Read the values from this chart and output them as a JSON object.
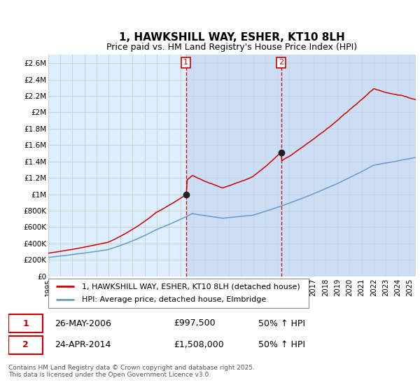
{
  "title": "1, HAWKSHILL WAY, ESHER, KT10 8LH",
  "subtitle": "Price paid vs. HM Land Registry's House Price Index (HPI)",
  "ylim": [
    0,
    2700000
  ],
  "yticks": [
    0,
    200000,
    400000,
    600000,
    800000,
    1000000,
    1200000,
    1400000,
    1600000,
    1800000,
    2000000,
    2200000,
    2400000,
    2600000
  ],
  "ytick_labels": [
    "£0",
    "£200K",
    "£400K",
    "£600K",
    "£800K",
    "£1M",
    "£1.2M",
    "£1.4M",
    "£1.6M",
    "£1.8M",
    "£2M",
    "£2.2M",
    "£2.4M",
    "£2.6M"
  ],
  "xlim_start": 1995.0,
  "xlim_end": 2025.5,
  "purchase1_x": 2006.42,
  "purchase1_y": 997500,
  "purchase2_x": 2014.32,
  "purchase2_y": 1508000,
  "line1_color": "#cc0000",
  "line2_color": "#6699cc",
  "grid_color": "#cccccc",
  "bg_color": "#ddeeff",
  "span_color": "#c5d8f0",
  "legend_line1": "1, HAWKSHILL WAY, ESHER, KT10 8LH (detached house)",
  "legend_line2": "HPI: Average price, detached house, Elmbridge",
  "note1_num": "1",
  "note1_date": "26-MAY-2006",
  "note1_price": "£997,500",
  "note1_change": "50% ↑ HPI",
  "note2_num": "2",
  "note2_date": "24-APR-2014",
  "note2_price": "£1,508,000",
  "note2_change": "50% ↑ HPI",
  "footer": "Contains HM Land Registry data © Crown copyright and database right 2025.\nThis data is licensed under the Open Government Licence v3.0."
}
